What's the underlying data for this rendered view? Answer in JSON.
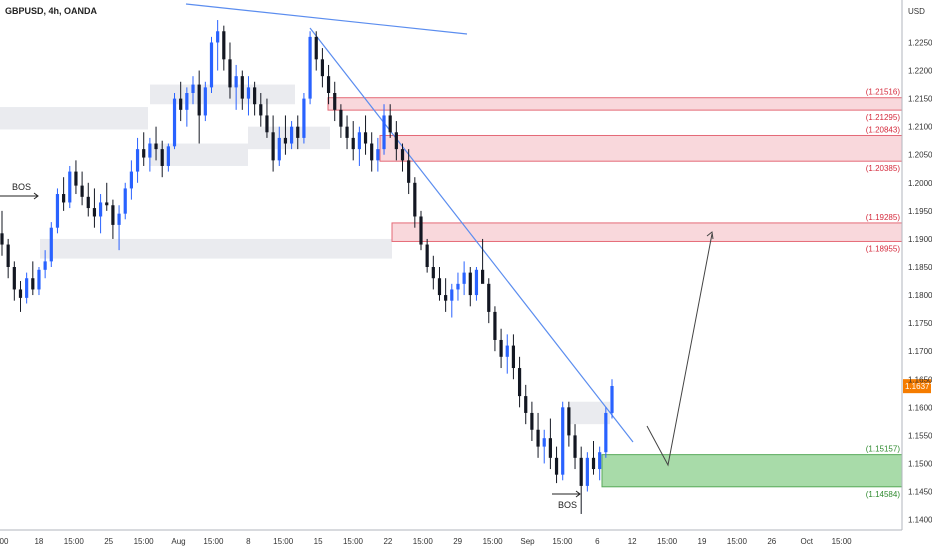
{
  "chart_data": {
    "type": "candlestick",
    "title": "GBPUSD, 4h, OANDA",
    "currency": "USD",
    "ylim": [
      1.1385,
      1.2315
    ],
    "y_ticks": [
      "1.22500",
      "1.22000",
      "1.21500",
      "1.21000",
      "1.20500",
      "1.20000",
      "1.19500",
      "1.19000",
      "1.18500",
      "1.18000",
      "1.17500",
      "1.17000",
      "1.16500",
      "1.16000",
      "1.15500",
      "1.15000",
      "1.14500",
      "1.14000"
    ],
    "x_ticks": [
      "00",
      "18",
      "15:00",
      "25",
      "15:00",
      "Aug",
      "15:00",
      "8",
      "15:00",
      "15",
      "15:00",
      "22",
      "15:00",
      "29",
      "15:00",
      "Sep",
      "15:00",
      "6",
      "12",
      "15:00",
      "19",
      "15:00",
      "26",
      "Oct",
      "15:00"
    ],
    "current_price": "1.16377",
    "price_levels": [
      {
        "label": "(1.21516)",
        "color": "red"
      },
      {
        "label": "(1.21295)",
        "color": "red"
      },
      {
        "label": "(1.20843)",
        "color": "red"
      },
      {
        "label": "(1.20385)",
        "color": "red"
      },
      {
        "label": "(1.19285)",
        "color": "red"
      },
      {
        "label": "(1.18955)",
        "color": "red"
      },
      {
        "label": "(1.15157)",
        "color": "green"
      },
      {
        "label": "(1.14584)",
        "color": "green"
      }
    ],
    "supply_zones": [
      {
        "y_top": 1.21516,
        "y_bottom": 1.21295
      },
      {
        "y_top": 1.20843,
        "y_bottom": 1.20385
      },
      {
        "y_top": 1.19285,
        "y_bottom": 1.18955
      }
    ],
    "demand_zone": {
      "y_top": 1.15157,
      "y_bottom": 1.14584
    },
    "consolidation_zones": [
      {
        "y_top": 1.2135,
        "y_bottom": 1.2095
      },
      {
        "y_top": 1.2175,
        "y_bottom": 1.214
      },
      {
        "y_top": 1.207,
        "y_bottom": 1.203
      },
      {
        "y_top": 1.21,
        "y_bottom": 1.206
      },
      {
        "y_top": 1.19,
        "y_bottom": 1.1865
      },
      {
        "y_top": 1.161,
        "y_bottom": 1.157
      }
    ],
    "annotations": [
      "BOS",
      "BOS"
    ],
    "candles_ohlc": [
      [
        1.191,
        1.195,
        1.187,
        1.189
      ],
      [
        1.189,
        1.19,
        1.183,
        1.185
      ],
      [
        1.185,
        1.186,
        1.179,
        1.181
      ],
      [
        1.181,
        1.1825,
        1.177,
        1.1795
      ],
      [
        1.1795,
        1.184,
        1.1785,
        1.183
      ],
      [
        1.183,
        1.186,
        1.18,
        1.181
      ],
      [
        1.181,
        1.185,
        1.18,
        1.1845
      ],
      [
        1.1845,
        1.188,
        1.183,
        1.186
      ],
      [
        1.186,
        1.193,
        1.185,
        1.192
      ],
      [
        1.192,
        1.199,
        1.191,
        1.198
      ],
      [
        1.198,
        1.201,
        1.195,
        1.1965
      ],
      [
        1.1965,
        1.203,
        1.1955,
        1.202
      ],
      [
        1.202,
        1.204,
        1.198,
        1.1995
      ],
      [
        1.1995,
        1.202,
        1.196,
        1.1975
      ],
      [
        1.1975,
        1.2,
        1.194,
        1.1955
      ],
      [
        1.1955,
        1.199,
        1.192,
        1.194
      ],
      [
        1.194,
        1.198,
        1.191,
        1.1965
      ],
      [
        1.1965,
        1.2,
        1.195,
        1.196
      ],
      [
        1.196,
        1.197,
        1.19,
        1.1925
      ],
      [
        1.1925,
        1.196,
        1.188,
        1.1945
      ],
      [
        1.1945,
        1.2,
        1.1935,
        1.199
      ],
      [
        1.199,
        1.204,
        1.197,
        1.202
      ],
      [
        1.202,
        1.208,
        1.2,
        1.206
      ],
      [
        1.206,
        1.209,
        1.203,
        1.2045
      ],
      [
        1.2045,
        1.208,
        1.202,
        1.207
      ],
      [
        1.207,
        1.21,
        1.204,
        1.206
      ],
      [
        1.206,
        1.2075,
        1.201,
        1.203
      ],
      [
        1.203,
        1.207,
        1.202,
        1.2065
      ],
      [
        1.2065,
        1.216,
        1.206,
        1.215
      ],
      [
        1.215,
        1.218,
        1.211,
        1.213
      ],
      [
        1.213,
        1.217,
        1.21,
        1.216
      ],
      [
        1.216,
        1.219,
        1.214,
        1.2175
      ],
      [
        1.2175,
        1.22,
        1.207,
        1.212
      ],
      [
        1.212,
        1.218,
        1.211,
        1.217
      ],
      [
        1.217,
        1.226,
        1.216,
        1.225
      ],
      [
        1.225,
        1.229,
        1.22,
        1.227
      ],
      [
        1.227,
        1.228,
        1.22,
        1.222
      ],
      [
        1.222,
        1.225,
        1.215,
        1.217
      ],
      [
        1.217,
        1.221,
        1.213,
        1.219
      ],
      [
        1.219,
        1.22,
        1.213,
        1.215
      ],
      [
        1.215,
        1.219,
        1.212,
        1.217
      ],
      [
        1.217,
        1.218,
        1.212,
        1.214
      ],
      [
        1.214,
        1.216,
        1.21,
        1.212
      ],
      [
        1.212,
        1.215,
        1.208,
        1.209
      ],
      [
        1.209,
        1.212,
        1.202,
        1.204
      ],
      [
        1.204,
        1.21,
        1.203,
        1.208
      ],
      [
        1.208,
        1.212,
        1.205,
        1.207
      ],
      [
        1.207,
        1.211,
        1.206,
        1.21
      ],
      [
        1.21,
        1.212,
        1.206,
        1.208
      ],
      [
        1.208,
        1.216,
        1.207,
        1.215
      ],
      [
        1.215,
        1.227,
        1.214,
        1.226
      ],
      [
        1.226,
        1.227,
        1.22,
        1.222
      ],
      [
        1.222,
        1.224,
        1.217,
        1.219
      ],
      [
        1.219,
        1.221,
        1.214,
        1.216
      ],
      [
        1.216,
        1.218,
        1.211,
        1.213
      ],
      [
        1.213,
        1.214,
        1.208,
        1.21
      ],
      [
        1.21,
        1.212,
        1.206,
        1.208
      ],
      [
        1.208,
        1.211,
        1.204,
        1.206
      ],
      [
        1.206,
        1.21,
        1.203,
        1.209
      ],
      [
        1.209,
        1.212,
        1.205,
        1.207
      ],
      [
        1.207,
        1.209,
        1.202,
        1.204
      ],
      [
        1.204,
        1.208,
        1.202,
        1.206
      ],
      [
        1.206,
        1.214,
        1.205,
        1.212
      ],
      [
        1.212,
        1.214,
        1.208,
        1.209
      ],
      [
        1.209,
        1.211,
        1.204,
        1.206
      ],
      [
        1.206,
        1.207,
        1.202,
        1.204
      ],
      [
        1.204,
        1.206,
        1.198,
        1.2
      ],
      [
        1.2,
        1.201,
        1.192,
        1.194
      ],
      [
        1.194,
        1.195,
        1.188,
        1.189
      ],
      [
        1.189,
        1.19,
        1.184,
        1.185
      ],
      [
        1.185,
        1.187,
        1.181,
        1.183
      ],
      [
        1.183,
        1.185,
        1.179,
        1.18
      ],
      [
        1.18,
        1.183,
        1.177,
        1.179
      ],
      [
        1.179,
        1.182,
        1.176,
        1.181
      ],
      [
        1.181,
        1.184,
        1.179,
        1.182
      ],
      [
        1.182,
        1.186,
        1.18,
        1.184
      ],
      [
        1.184,
        1.185,
        1.178,
        1.18
      ],
      [
        1.18,
        1.185,
        1.179,
        1.1845
      ],
      [
        1.1845,
        1.19,
        1.183,
        1.182
      ],
      [
        1.182,
        1.183,
        1.175,
        1.177
      ],
      [
        1.177,
        1.178,
        1.17,
        1.172
      ],
      [
        1.172,
        1.174,
        1.167,
        1.169
      ],
      [
        1.169,
        1.173,
        1.166,
        1.171
      ],
      [
        1.171,
        1.173,
        1.165,
        1.167
      ],
      [
        1.167,
        1.169,
        1.16,
        1.162
      ],
      [
        1.162,
        1.164,
        1.157,
        1.159
      ],
      [
        1.159,
        1.161,
        1.154,
        1.156
      ],
      [
        1.156,
        1.159,
        1.151,
        1.153
      ],
      [
        1.153,
        1.156,
        1.15,
        1.1545
      ],
      [
        1.1545,
        1.158,
        1.149,
        1.151
      ],
      [
        1.151,
        1.153,
        1.1465,
        1.148
      ],
      [
        1.148,
        1.161,
        1.147,
        1.16
      ],
      [
        1.16,
        1.161,
        1.153,
        1.155
      ],
      [
        1.155,
        1.157,
        1.149,
        1.151
      ],
      [
        1.151,
        1.153,
        1.141,
        1.146
      ],
      [
        1.146,
        1.152,
        1.145,
        1.151
      ],
      [
        1.151,
        1.154,
        1.148,
        1.149
      ],
      [
        1.149,
        1.153,
        1.147,
        1.152
      ],
      [
        1.152,
        1.16,
        1.151,
        1.159
      ],
      [
        1.159,
        1.165,
        1.158,
        1.1638
      ]
    ]
  }
}
